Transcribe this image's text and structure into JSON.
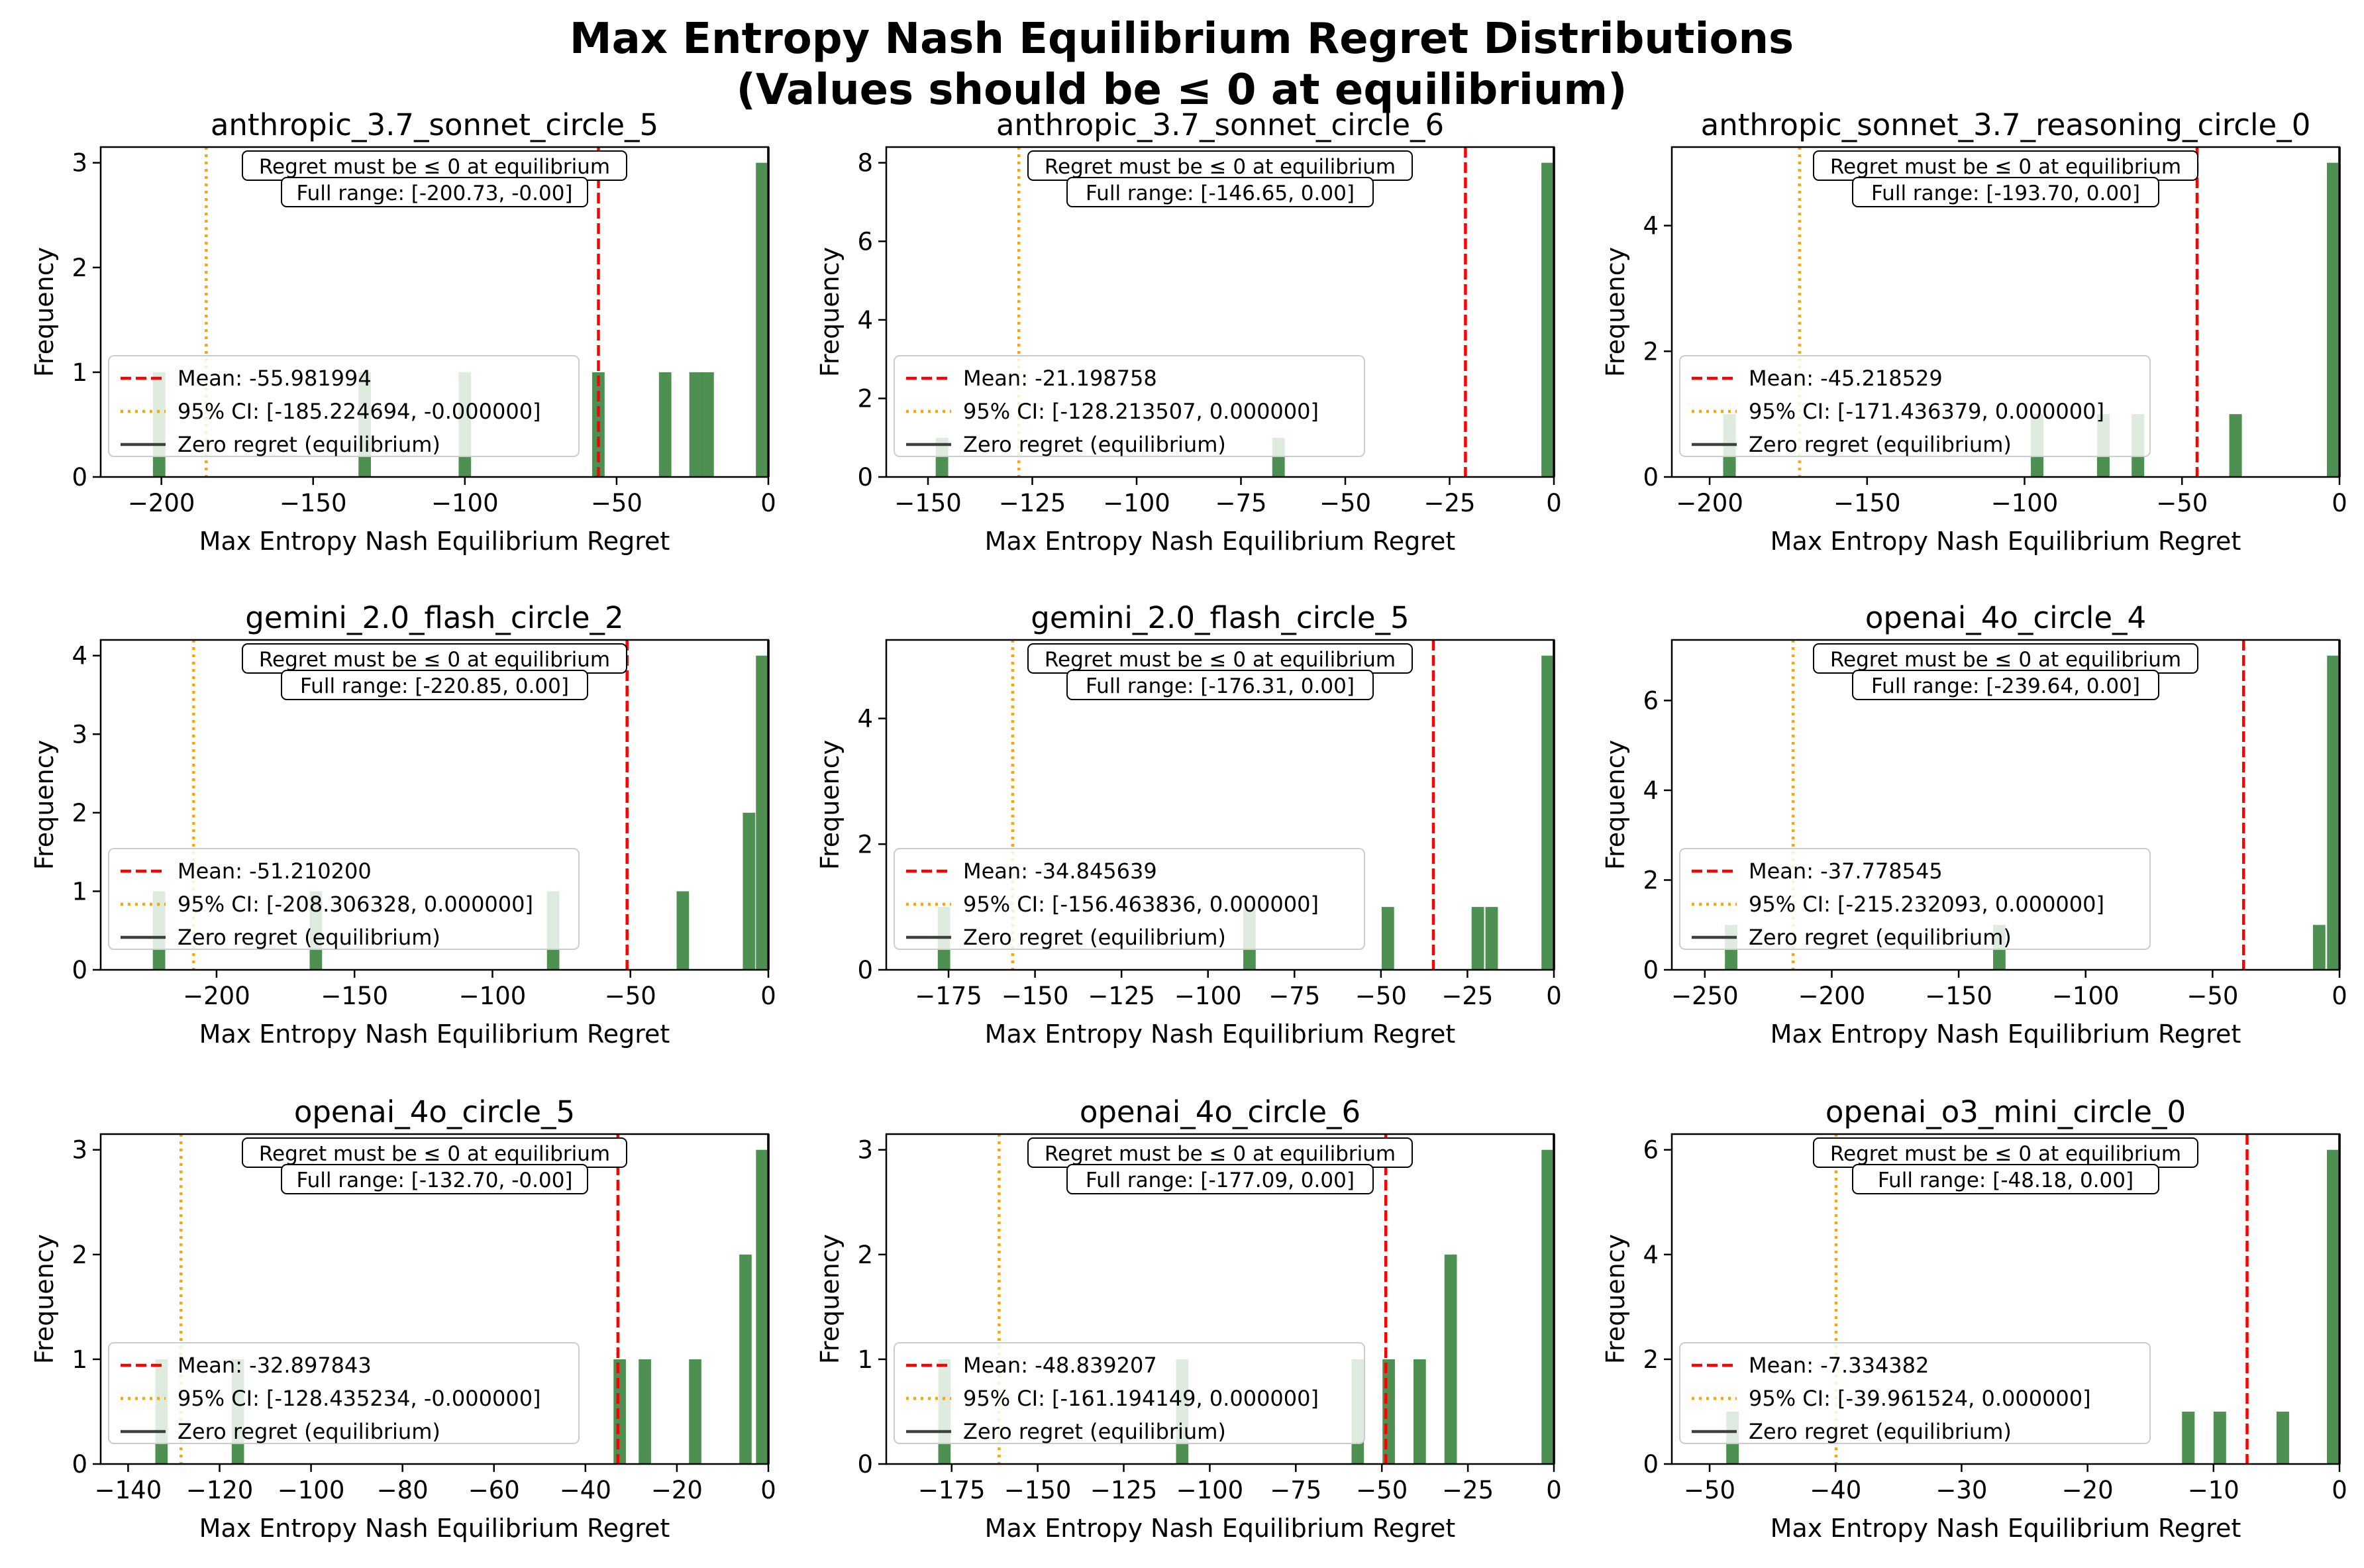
{
  "figure": {
    "title_line1": "Max Entropy Nash Equilibrium Regret Distributions",
    "title_line2": "(Values should be ≤ 0 at equilibrium)"
  },
  "colors": {
    "bars": "#2e7d32",
    "mean_line": "#ff0000",
    "ci_line": "#ffa500",
    "zero_line": "#404040"
  },
  "chart_data": [
    {
      "type": "bar",
      "title": "anthropic_3.7_sonnet_circle_5",
      "xlabel": "Max Entropy Nash Equilibrium Regret",
      "ylabel": "Frequency",
      "xlim": [
        -220,
        0
      ],
      "ylim": [
        0,
        3.15
      ],
      "xticks": [
        -200,
        -150,
        -100,
        -50,
        0
      ],
      "yticks": [
        0,
        1,
        2,
        3
      ],
      "bin_width": 4.1,
      "bars": [
        [
          -200.73,
          1
        ],
        [
          -133,
          1
        ],
        [
          -100,
          1
        ],
        [
          -56,
          1
        ],
        [
          -34,
          1
        ],
        [
          -24,
          1
        ],
        [
          -20,
          1
        ],
        [
          -0.5,
          3
        ]
      ],
      "mean": -55.981994,
      "ci": [
        -185.224694,
        0
      ],
      "note_line1": "Regret must be ≤ 0 at equilibrium",
      "note_line2": "Full range: [-200.73, -0.00]",
      "legend": [
        "Mean: -55.981994",
        "95% CI: [-185.224694, -0.000000]",
        "Zero regret (equilibrium)"
      ]
    },
    {
      "type": "bar",
      "title": "anthropic_3.7_sonnet_circle_6",
      "xlabel": "Max Entropy Nash Equilibrium Regret",
      "ylabel": "Frequency",
      "xlim": [
        -160,
        0
      ],
      "ylim": [
        0,
        8.4
      ],
      "xticks": [
        -150,
        -125,
        -100,
        -75,
        -50,
        -25,
        0
      ],
      "yticks": [
        0,
        2,
        4,
        6,
        8
      ],
      "bin_width": 3,
      "bars": [
        [
          -146.65,
          1
        ],
        [
          -66,
          1
        ],
        [
          -0.5,
          8
        ]
      ],
      "mean": -21.198758,
      "ci": [
        -128.213507,
        0
      ],
      "note_line1": "Regret must be ≤ 0 at equilibrium",
      "note_line2": "Full range: [-146.65, 0.00]",
      "legend": [
        "Mean: -21.198758",
        "95% CI: [-128.213507, 0.000000]",
        "Zero regret (equilibrium)"
      ]
    },
    {
      "type": "bar",
      "title": "anthropic_sonnet_3.7_reasoning_circle_0",
      "xlabel": "Max Entropy Nash Equilibrium Regret",
      "ylabel": "Frequency",
      "xlim": [
        -212,
        0
      ],
      "ylim": [
        0,
        5.25
      ],
      "xticks": [
        -200,
        -150,
        -100,
        -50,
        0
      ],
      "yticks": [
        0,
        2,
        4
      ],
      "bin_width": 4,
      "bars": [
        [
          -193.7,
          1
        ],
        [
          -96,
          1
        ],
        [
          -75,
          1
        ],
        [
          -64,
          1
        ],
        [
          -33,
          1
        ],
        [
          -0.5,
          5
        ]
      ],
      "mean": -45.218529,
      "ci": [
        -171.436379,
        0
      ],
      "note_line1": "Regret must be ≤ 0 at equilibrium",
      "note_line2": "Full range: [-193.70, 0.00]",
      "legend": [
        "Mean: -45.218529",
        "95% CI: [-171.436379, 0.000000]",
        "Zero regret (equilibrium)"
      ]
    },
    {
      "type": "bar",
      "title": "gemini_2.0_flash_circle_2",
      "xlabel": "Max Entropy Nash Equilibrium Regret",
      "ylabel": "Frequency",
      "xlim": [
        -242,
        0
      ],
      "ylim": [
        0,
        4.2
      ],
      "xticks": [
        -200,
        -150,
        -100,
        -50,
        0
      ],
      "yticks": [
        0,
        1,
        2,
        3,
        4
      ],
      "bin_width": 4.5,
      "bars": [
        [
          -220.85,
          1
        ],
        [
          -164,
          1
        ],
        [
          -78,
          1
        ],
        [
          -31,
          1
        ],
        [
          -7,
          2
        ],
        [
          -0.5,
          4
        ]
      ],
      "mean": -51.2102,
      "ci": [
        -208.306328,
        0
      ],
      "note_line1": "Regret must be ≤ 0 at equilibrium",
      "note_line2": "Full range: [-220.85, 0.00]",
      "legend": [
        "Mean: -51.210200",
        "95% CI: [-208.306328, 0.000000]",
        "Zero regret (equilibrium)"
      ]
    },
    {
      "type": "bar",
      "title": "gemini_2.0_flash_circle_5",
      "xlabel": "Max Entropy Nash Equilibrium Regret",
      "ylabel": "Frequency",
      "xlim": [
        -193,
        0
      ],
      "ylim": [
        0,
        5.25
      ],
      "xticks": [
        -175,
        -150,
        -125,
        -100,
        -75,
        -50,
        -25,
        0
      ],
      "yticks": [
        0,
        2,
        4
      ],
      "bin_width": 3.6,
      "bars": [
        [
          -176.31,
          1
        ],
        [
          -88,
          1
        ],
        [
          -48,
          1
        ],
        [
          -22,
          1
        ],
        [
          -18,
          1
        ],
        [
          -0.5,
          5
        ]
      ],
      "mean": -34.845639,
      "ci": [
        -156.463836,
        0
      ],
      "note_line1": "Regret must be ≤ 0 at equilibrium",
      "note_line2": "Full range: [-176.31, 0.00]",
      "legend": [
        "Mean: -34.845639",
        "95% CI: [-156.463836, 0.000000]",
        "Zero regret (equilibrium)"
      ]
    },
    {
      "type": "bar",
      "title": "openai_4o_circle_4",
      "xlabel": "Max Entropy Nash Equilibrium Regret",
      "ylabel": "Frequency",
      "xlim": [
        -263,
        0
      ],
      "ylim": [
        0,
        7.35
      ],
      "xticks": [
        -250,
        -200,
        -150,
        -100,
        -50,
        0
      ],
      "yticks": [
        0,
        2,
        4,
        6
      ],
      "bin_width": 4.9,
      "bars": [
        [
          -239.64,
          1
        ],
        [
          -134,
          1
        ],
        [
          -8,
          1
        ],
        [
          -0.5,
          7
        ]
      ],
      "mean": -37.778545,
      "ci": [
        -215.232093,
        0
      ],
      "note_line1": "Regret must be ≤ 0 at equilibrium",
      "note_line2": "Full range: [-239.64, 0.00]",
      "legend": [
        "Mean: -37.778545",
        "95% CI: [-215.232093, 0.000000]",
        "Zero regret (equilibrium)"
      ]
    },
    {
      "type": "bar",
      "title": "openai_4o_circle_5",
      "xlabel": "Max Entropy Nash Equilibrium Regret",
      "ylabel": "Frequency",
      "xlim": [
        -146,
        0
      ],
      "ylim": [
        0,
        3.15
      ],
      "xticks": [
        -140,
        -120,
        -100,
        -80,
        -60,
        -40,
        -20,
        0
      ],
      "yticks": [
        0,
        1,
        2,
        3
      ],
      "bin_width": 2.7,
      "bars": [
        [
          -132.7,
          1
        ],
        [
          -116,
          1
        ],
        [
          -32.5,
          1
        ],
        [
          -27,
          1
        ],
        [
          -16,
          1
        ],
        [
          -5,
          2
        ],
        [
          -0.5,
          3
        ]
      ],
      "mean": -32.897843,
      "ci": [
        -128.435234,
        0
      ],
      "note_line1": "Regret must be ≤ 0 at equilibrium",
      "note_line2": "Full range: [-132.70, -0.00]",
      "legend": [
        "Mean: -32.897843",
        "95% CI: [-128.435234, -0.000000]",
        "Zero regret (equilibrium)"
      ]
    },
    {
      "type": "bar",
      "title": "openai_4o_circle_6",
      "xlabel": "Max Entropy Nash Equilibrium Regret",
      "ylabel": "Frequency",
      "xlim": [
        -194,
        0
      ],
      "ylim": [
        0,
        3.15
      ],
      "xticks": [
        -175,
        -150,
        -125,
        -100,
        -75,
        -50,
        -25,
        0
      ],
      "yticks": [
        0,
        1,
        2,
        3
      ],
      "bin_width": 3.6,
      "bars": [
        [
          -177.09,
          1
        ],
        [
          -108,
          1
        ],
        [
          -57,
          1
        ],
        [
          -48,
          1
        ],
        [
          -39,
          1
        ],
        [
          -30,
          2
        ],
        [
          -0.5,
          3
        ]
      ],
      "mean": -48.839207,
      "ci": [
        -161.194149,
        0
      ],
      "note_line1": "Regret must be ≤ 0 at equilibrium",
      "note_line2": "Full range: [-177.09, 0.00]",
      "legend": [
        "Mean: -48.839207",
        "95% CI: [-161.194149, 0.000000]",
        "Zero regret (equilibrium)"
      ]
    },
    {
      "type": "bar",
      "title": "openai_o3_mini_circle_0",
      "xlabel": "Max Entropy Nash Equilibrium Regret",
      "ylabel": "Frequency",
      "xlim": [
        -53,
        0
      ],
      "ylim": [
        0,
        6.3
      ],
      "xticks": [
        -50,
        -40,
        -30,
        -20,
        -10,
        0
      ],
      "yticks": [
        0,
        2,
        4,
        6
      ],
      "bin_width": 1.0,
      "bars": [
        [
          -48.18,
          1
        ],
        [
          -12,
          1
        ],
        [
          -9.5,
          1
        ],
        [
          -4.5,
          1
        ],
        [
          -0.5,
          6
        ]
      ],
      "mean": -7.334382,
      "ci": [
        -39.961524,
        0
      ],
      "note_line1": "Regret must be ≤ 0 at equilibrium",
      "note_line2": "Full range: [-48.18, 0.00]",
      "legend": [
        "Mean: -7.334382",
        "95% CI: [-39.961524, 0.000000]",
        "Zero regret (equilibrium)"
      ]
    }
  ]
}
